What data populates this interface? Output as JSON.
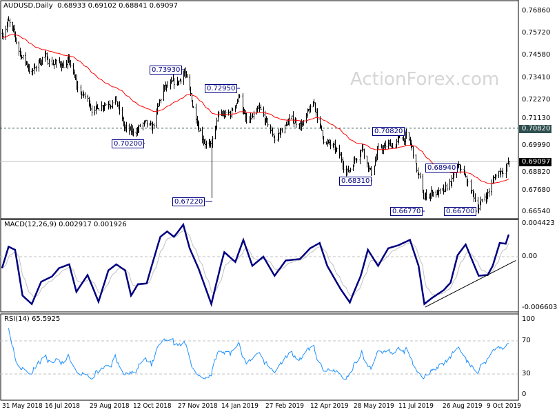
{
  "header": {
    "symbol": "AUDUSD,Daily",
    "ohlc": "0.68933 0.69102 0.68841 0.69097"
  },
  "watermark": "ActionForex.com",
  "colors": {
    "bars": "#000000",
    "ma": "#ff0000",
    "macd": "#000080",
    "signal": "#c0c0c0",
    "rsi": "#1e90ff",
    "annotation": "#000080",
    "hline_label_bg": "#2f4f4f",
    "price_label_bg": "#000000"
  },
  "chart_data": [
    {
      "type": "ohlc",
      "title": "AUDUSD,Daily",
      "ylim": [
        0.6654,
        0.7686
      ],
      "y_ticks": [
        "0.76860",
        "0.75720",
        "0.74580",
        "0.73410",
        "0.72270",
        "0.71130",
        "0.69990",
        "0.68820",
        "0.67680",
        "0.66540"
      ],
      "x_ticks": [
        {
          "label": "31 May 2018",
          "date": "2018-05-31"
        },
        {
          "label": "16 Jul 2018",
          "date": "2018-07-16"
        },
        {
          "label": "29 Aug 2018",
          "date": "2018-08-29"
        },
        {
          "label": "12 Oct 2018",
          "date": "2018-10-12"
        },
        {
          "label": "27 Nov 2018",
          "date": "2018-11-27"
        },
        {
          "label": "14 Jan 2019",
          "date": "2019-01-14"
        },
        {
          "label": "27 Feb 2019",
          "date": "2019-02-27"
        },
        {
          "label": "12 Apr 2019",
          "date": "2019-04-12"
        },
        {
          "label": "28 May 2019",
          "date": "2019-05-28"
        },
        {
          "label": "11 Jul 2019",
          "date": "2019-07-11"
        },
        {
          "label": "26 Aug 2019",
          "date": "2019-08-26"
        },
        {
          "label": "9 Oct 2019",
          "date": "2019-10-09"
        }
      ],
      "last_price": "0.69097",
      "hline": "0.70820",
      "close_anchors": [
        [
          "2018-05-31",
          0.757
        ],
        [
          "2018-06-06",
          0.764
        ],
        [
          "2018-06-18",
          0.748
        ],
        [
          "2018-07-02",
          0.737
        ],
        [
          "2018-07-13",
          0.745
        ],
        [
          "2018-07-30",
          0.741
        ],
        [
          "2018-08-09",
          0.742
        ],
        [
          "2018-08-17",
          0.728
        ],
        [
          "2018-09-03",
          0.718
        ],
        [
          "2018-09-13",
          0.722
        ],
        [
          "2018-09-24",
          0.724
        ],
        [
          "2018-10-03",
          0.708
        ],
        [
          "2018-10-10",
          0.705
        ],
        [
          "2018-10-22",
          0.71
        ],
        [
          "2018-10-31",
          0.706
        ],
        [
          "2018-11-12",
          0.728
        ],
        [
          "2018-11-26",
          0.73
        ],
        [
          "2018-12-04",
          0.738
        ],
        [
          "2018-12-13",
          0.72
        ],
        [
          "2018-12-24",
          0.705
        ],
        [
          "2019-01-02",
          0.698
        ],
        [
          "2019-01-11",
          0.714
        ],
        [
          "2019-01-23",
          0.715
        ],
        [
          "2019-02-01",
          0.726
        ],
        [
          "2019-02-08",
          0.71
        ],
        [
          "2019-02-21",
          0.716
        ],
        [
          "2019-03-08",
          0.703
        ],
        [
          "2019-03-22",
          0.712
        ],
        [
          "2019-04-05",
          0.711
        ],
        [
          "2019-04-16",
          0.72
        ],
        [
          "2019-04-26",
          0.703
        ],
        [
          "2019-05-10",
          0.695
        ],
        [
          "2019-05-22",
          0.686
        ],
        [
          "2019-06-05",
          0.7
        ],
        [
          "2019-06-14",
          0.685
        ],
        [
          "2019-06-20",
          0.696
        ],
        [
          "2019-07-09",
          0.701
        ],
        [
          "2019-07-19",
          0.704
        ],
        [
          "2019-07-25",
          0.697
        ],
        [
          "2019-08-06",
          0.672
        ],
        [
          "2019-08-16",
          0.676
        ],
        [
          "2019-08-28",
          0.674
        ],
        [
          "2019-09-09",
          0.686
        ],
        [
          "2019-09-13",
          0.687
        ],
        [
          "2019-09-30",
          0.668
        ],
        [
          "2019-10-09",
          0.674
        ],
        [
          "2019-10-18",
          0.684
        ],
        [
          "2019-10-31",
          0.691
        ]
      ],
      "spikes": [
        {
          "date": "2019-01-03",
          "low": 0.6722
        }
      ],
      "annotations": [
        "0.73930",
        "0.72950",
        "0.70200",
        "0.67220",
        "0.70820",
        "0.68310",
        "0.68940",
        "0.66770",
        "0.66700"
      ]
    },
    {
      "type": "line",
      "title": "MACD(12,26,9) 0.002917 0.001926",
      "ylim": [
        -0.006603,
        0.004423
      ],
      "y_ticks": [
        "0.004423",
        "0.00",
        "-0.006603"
      ],
      "macd_anchors": [
        [
          "2018-05-31",
          -0.0015
        ],
        [
          "2018-06-07",
          0.0013
        ],
        [
          "2018-06-14",
          0.0009
        ],
        [
          "2018-06-22",
          -0.0051
        ],
        [
          "2018-07-02",
          -0.0062
        ],
        [
          "2018-07-12",
          -0.0033
        ],
        [
          "2018-07-23",
          -0.0026
        ],
        [
          "2018-07-30",
          -0.0015
        ],
        [
          "2018-08-09",
          -0.001
        ],
        [
          "2018-08-16",
          -0.0046
        ],
        [
          "2018-08-27",
          -0.0024
        ],
        [
          "2018-09-07",
          -0.0059
        ],
        [
          "2018-09-17",
          -0.0018
        ],
        [
          "2018-09-25",
          -0.001
        ],
        [
          "2018-10-04",
          -0.0018
        ],
        [
          "2018-10-10",
          -0.0051
        ],
        [
          "2018-10-17",
          -0.0036
        ],
        [
          "2018-10-26",
          -0.0035
        ],
        [
          "2018-11-02",
          -0.0004
        ],
        [
          "2018-11-09",
          0.0026
        ],
        [
          "2018-11-16",
          0.0033
        ],
        [
          "2018-11-23",
          0.0026
        ],
        [
          "2018-12-03",
          0.0042
        ],
        [
          "2018-12-10",
          0.0011
        ],
        [
          "2018-12-20",
          -0.0016
        ],
        [
          "2019-01-03",
          -0.0062
        ],
        [
          "2019-01-17",
          0.0006
        ],
        [
          "2019-01-28",
          -0.0007
        ],
        [
          "2019-02-05",
          0.0022
        ],
        [
          "2019-02-14",
          -0.0012
        ],
        [
          "2019-02-25",
          0.0
        ],
        [
          "2019-03-08",
          -0.0025
        ],
        [
          "2019-03-19",
          -0.0005
        ],
        [
          "2019-04-02",
          -0.0003
        ],
        [
          "2019-04-12",
          0.0011
        ],
        [
          "2019-04-22",
          0.0018
        ],
        [
          "2019-04-30",
          -0.0012
        ],
        [
          "2019-05-14",
          -0.0042
        ],
        [
          "2019-05-24",
          -0.006
        ],
        [
          "2019-06-04",
          -0.0025
        ],
        [
          "2019-06-11",
          0.0009
        ],
        [
          "2019-06-21",
          -0.0012
        ],
        [
          "2019-07-01",
          0.0011
        ],
        [
          "2019-07-11",
          0.0015
        ],
        [
          "2019-07-23",
          0.0022
        ],
        [
          "2019-08-01",
          -0.0012
        ],
        [
          "2019-08-07",
          -0.0062
        ],
        [
          "2019-08-15",
          -0.0054
        ],
        [
          "2019-08-27",
          -0.0044
        ],
        [
          "2019-09-03",
          -0.0034
        ],
        [
          "2019-09-10",
          0.0002
        ],
        [
          "2019-09-18",
          0.0016
        ],
        [
          "2019-09-24",
          -0.0003
        ],
        [
          "2019-10-01",
          -0.0025
        ],
        [
          "2019-10-10",
          -0.0024
        ],
        [
          "2019-10-15",
          -0.0012
        ],
        [
          "2019-10-22",
          0.0018
        ],
        [
          "2019-10-28",
          0.0017
        ],
        [
          "2019-10-31",
          0.0029
        ]
      ],
      "trendline": [
        [
          "2019-08-08",
          -0.0066
        ],
        [
          "2019-11-07",
          -0.0005
        ]
      ]
    },
    {
      "type": "line",
      "title": "RSI(14) 65.5925",
      "ylim": [
        0,
        100
      ],
      "y_ticks": [
        "100",
        "70",
        "30",
        "0"
      ],
      "levels": [
        70,
        30
      ],
      "last": 65.5925
    }
  ]
}
